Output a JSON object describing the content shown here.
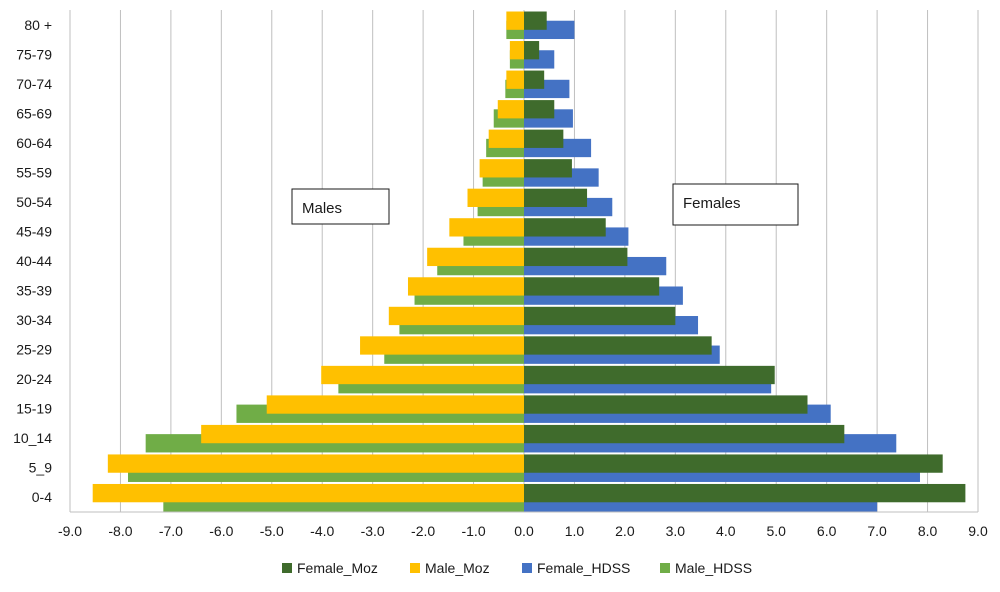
{
  "chart_data": {
    "type": "bar",
    "orientation": "horizontal",
    "title": "",
    "xlabel": "",
    "ylabel": "",
    "xlim": [
      -9.0,
      9.0
    ],
    "x_ticks": [
      "-9.0",
      "-8.0",
      "-7.0",
      "-6.0",
      "-5.0",
      "-4.0",
      "-3.0",
      "-2.0",
      "-1.0",
      "0.0",
      "1.0",
      "2.0",
      "3.0",
      "4.0",
      "5.0",
      "6.0",
      "7.0",
      "8.0",
      "9.0"
    ],
    "categories": [
      "0-4",
      "5_9",
      "10_14",
      "15-19",
      "20-24",
      "25-29",
      "30-34",
      "35-39",
      "40-44",
      "45-49",
      "50-54",
      "55-59",
      "60-64",
      "65-69",
      "70-74",
      "75-79",
      "80 +"
    ],
    "grid": "vertical",
    "legend_position": "bottom",
    "series": [
      {
        "name": "Female_Moz",
        "color": "#3f6b2c",
        "values": [
          8.75,
          8.3,
          6.35,
          5.62,
          4.97,
          3.72,
          3.0,
          2.68,
          2.05,
          1.62,
          1.25,
          0.95,
          0.78,
          0.6,
          0.4,
          0.3,
          0.45
        ]
      },
      {
        "name": "Male_Moz",
        "color": "#ffc000",
        "values": [
          -8.55,
          -8.25,
          -6.4,
          -5.1,
          -4.02,
          -3.25,
          -2.68,
          -2.3,
          -1.92,
          -1.48,
          -1.12,
          -0.88,
          -0.7,
          -0.52,
          -0.35,
          -0.28,
          -0.35
        ]
      },
      {
        "name": "Female_HDSS",
        "color": "#4472c4",
        "values": [
          7.0,
          7.85,
          7.38,
          6.08,
          4.9,
          3.88,
          3.45,
          3.15,
          2.82,
          2.07,
          1.75,
          1.48,
          1.33,
          0.97,
          0.9,
          0.6,
          1.0
        ]
      },
      {
        "name": "Male_HDSS",
        "color": "#70ad47",
        "values": [
          -7.15,
          -7.85,
          -7.5,
          -5.7,
          -3.68,
          -2.77,
          -2.47,
          -2.17,
          -1.72,
          -1.2,
          -0.92,
          -0.82,
          -0.75,
          -0.6,
          -0.37,
          -0.28,
          -0.35
        ]
      }
    ],
    "annotations": [
      {
        "text": "Males",
        "near": "left-center"
      },
      {
        "text": "Females",
        "near": "right-center"
      }
    ]
  }
}
